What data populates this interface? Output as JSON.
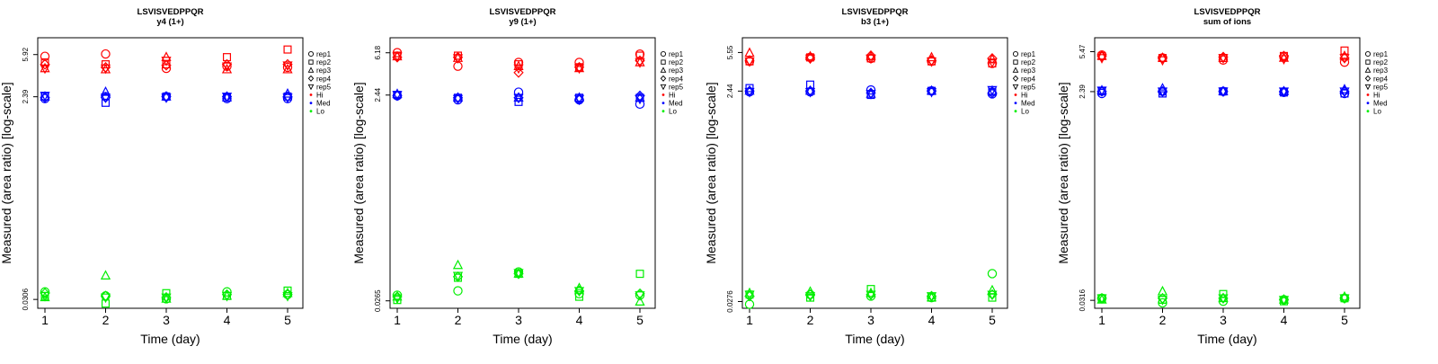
{
  "legend": {
    "shape_entries": [
      {
        "label": "rep1",
        "shape": "circle"
      },
      {
        "label": "rep2",
        "shape": "square"
      },
      {
        "label": "rep3",
        "shape": "triangle-up"
      },
      {
        "label": "rep4",
        "shape": "diamond"
      },
      {
        "label": "rep5",
        "shape": "triangle-down"
      }
    ],
    "color_entries": [
      {
        "label": "Hi",
        "color": "#ff0000"
      },
      {
        "label": "Med",
        "color": "#0000ff"
      },
      {
        "label": "Lo",
        "color": "#00ee00"
      }
    ]
  },
  "chart_data": [
    {
      "type": "scatter",
      "title": "LSVISVEDPPQR",
      "subtitle": "y4 (1+)",
      "xlabel": "Time (day)",
      "ylabel": "Measured (area ratio) [log-scale]",
      "x_ticks": [
        "1",
        "2",
        "3",
        "4",
        "5"
      ],
      "y_ticks": [
        "0.0306",
        "2.39",
        "5.92"
      ],
      "y_scale": "log",
      "ylim": [
        0.0253,
        8.5
      ],
      "grid": false,
      "legend_position": "right",
      "series": [
        {
          "name": "Hi",
          "color": "#ff0000",
          "values": [
            [
              5.7,
              6.0,
              4.4,
              4.6,
              4.5
            ],
            [
              5.0,
              4.8,
              4.8,
              5.6,
              6.6
            ],
            [
              4.4,
              4.3,
              5.6,
              4.3,
              4.3
            ],
            [
              4.8,
              4.5,
              4.7,
              4.8,
              4.8
            ],
            [
              4.4,
              4.4,
              5.2,
              4.6,
              4.7
            ]
          ]
        },
        {
          "name": "Med",
          "color": "#0000ff",
          "values": [
            [
              2.3,
              2.4,
              2.4,
              2.3,
              2.3
            ],
            [
              2.4,
              2.1,
              2.4,
              2.35,
              2.4
            ],
            [
              2.4,
              2.65,
              2.4,
              2.35,
              2.55
            ],
            [
              2.35,
              2.35,
              2.4,
              2.4,
              2.4
            ],
            [
              2.45,
              2.35,
              2.35,
              2.4,
              2.35
            ]
          ]
        },
        {
          "name": "Lo",
          "color": "#00ee00",
          "values": [
            [
              0.036,
              0.033,
              0.031,
              0.036,
              0.034
            ],
            [
              0.033,
              0.028,
              0.035,
              0.033,
              0.037
            ],
            [
              0.032,
              0.051,
              0.031,
              0.033,
              0.035
            ],
            [
              0.035,
              0.033,
              0.032,
              0.034,
              0.034
            ],
            [
              0.033,
              0.032,
              0.032,
              0.033,
              0.033
            ]
          ]
        }
      ]
    },
    {
      "type": "scatter",
      "title": "LSVISVEDPPQR",
      "subtitle": "y9 (1+)",
      "xlabel": "Time (day)",
      "ylabel": "Measured (area ratio) [log-scale]",
      "x_ticks": [
        "1",
        "2",
        "3",
        "4",
        "5"
      ],
      "y_ticks": [
        "0.0265",
        "2.44",
        "6.18"
      ],
      "y_scale": "log",
      "ylim": [
        0.0225,
        8.6
      ],
      "grid": false,
      "legend_position": "right",
      "series": [
        {
          "name": "Hi",
          "color": "#ff0000",
          "values": [
            [
              6.2,
              4.6,
              5.0,
              5.0,
              6.0
            ],
            [
              5.8,
              5.8,
              4.8,
              4.5,
              5.8
            ],
            [
              5.7,
              5.5,
              4.6,
              4.4,
              5.0
            ],
            [
              5.6,
              5.6,
              4.0,
              4.5,
              5.2
            ],
            [
              5.7,
              5.5,
              4.4,
              4.4,
              5.0
            ]
          ]
        },
        {
          "name": "Med",
          "color": "#0000ff",
          "values": [
            [
              2.4,
              2.2,
              2.6,
              2.2,
              2.0
            ],
            [
              2.45,
              2.3,
              2.1,
              2.3,
              2.3
            ],
            [
              2.5,
              2.3,
              2.3,
              2.3,
              2.3
            ],
            [
              2.4,
              2.3,
              2.3,
              2.2,
              2.4
            ],
            [
              2.45,
              2.25,
              2.3,
              2.25,
              2.25
            ]
          ]
        },
        {
          "name": "Lo",
          "color": "#00ee00",
          "values": [
            [
              0.03,
              0.033,
              0.05,
              0.031,
              0.03
            ],
            [
              0.027,
              0.044,
              0.048,
              0.029,
              0.048
            ],
            [
              0.029,
              0.058,
              0.048,
              0.035,
              0.026
            ],
            [
              0.029,
              0.045,
              0.048,
              0.033,
              0.031
            ],
            [
              0.028,
              0.046,
              0.049,
              0.033,
              0.03
            ]
          ]
        }
      ]
    },
    {
      "type": "scatter",
      "title": "LSVISVEDPPQR",
      "subtitle": "b3 (1+)",
      "xlabel": "Time (day)",
      "ylabel": "Measured (area ratio) [log-scale]",
      "x_ticks": [
        "1",
        "2",
        "3",
        "4",
        "5"
      ],
      "y_ticks": [
        "0.0276",
        "2.44",
        "5.55"
      ],
      "y_scale": "log",
      "ylim": [
        0.0239,
        7.6
      ],
      "grid": false,
      "legend_position": "right",
      "series": [
        {
          "name": "Hi",
          "color": "#ff0000",
          "values": [
            [
              4.6,
              5.0,
              4.9,
              4.6,
              4.4
            ],
            [
              4.6,
              5.0,
              4.9,
              4.6,
              4.4
            ],
            [
              5.5,
              5.1,
              5.1,
              5.0,
              4.8
            ],
            [
              4.7,
              4.9,
              5.2,
              4.7,
              4.9
            ],
            [
              4.6,
              4.9,
              4.9,
              4.6,
              4.5
            ]
          ]
        },
        {
          "name": "Med",
          "color": "#0000ff",
          "values": [
            [
              2.4,
              2.4,
              2.5,
              2.45,
              2.3
            ],
            [
              2.6,
              2.8,
              2.25,
              2.45,
              2.4
            ],
            [
              2.45,
              2.45,
              2.3,
              2.45,
              2.45
            ],
            [
              2.45,
              2.45,
              2.35,
              2.45,
              2.35
            ],
            [
              2.4,
              2.4,
              2.3,
              2.4,
              2.5
            ]
          ]
        },
        {
          "name": "Lo",
          "color": "#00ee00",
          "values": [
            [
              0.026,
              0.032,
              0.031,
              0.03,
              0.05
            ],
            [
              0.032,
              0.03,
              0.036,
              0.03,
              0.03
            ],
            [
              0.033,
              0.034,
              0.033,
              0.03,
              0.035
            ],
            [
              0.031,
              0.032,
              0.032,
              0.031,
              0.032
            ],
            [
              0.032,
              0.031,
              0.032,
              0.031,
              0.032
            ]
          ]
        }
      ]
    },
    {
      "type": "scatter",
      "title": "LSVISVEDPPQR",
      "subtitle": "sum of ions",
      "xlabel": "Time (day)",
      "ylabel": "Measured (area ratio) [log-scale]",
      "x_ticks": [
        "1",
        "2",
        "3",
        "4",
        "5"
      ],
      "y_ticks": [
        "0.0316",
        "2.39",
        "5.47"
      ],
      "y_scale": "log",
      "ylim": [
        0.0268,
        7.3
      ],
      "grid": false,
      "legend_position": "right",
      "series": [
        {
          "name": "Hi",
          "color": "#ff0000",
          "values": [
            [
              5.1,
              4.8,
              4.6,
              4.9,
              4.4
            ],
            [
              5.0,
              4.8,
              4.8,
              5.0,
              5.6
            ],
            [
              5.0,
              4.8,
              4.8,
              4.8,
              5.0
            ],
            [
              5.0,
              4.8,
              4.9,
              5.0,
              4.8
            ],
            [
              4.8,
              4.6,
              4.8,
              4.7,
              4.8
            ]
          ]
        },
        {
          "name": "Med",
          "color": "#0000ff",
          "values": [
            [
              2.3,
              2.4,
              2.4,
              2.35,
              2.3
            ],
            [
              2.4,
              2.3,
              2.4,
              2.35,
              2.3
            ],
            [
              2.45,
              2.55,
              2.4,
              2.4,
              2.5
            ],
            [
              2.4,
              2.4,
              2.4,
              2.4,
              2.4
            ],
            [
              2.45,
              2.4,
              2.4,
              2.4,
              2.4
            ]
          ]
        },
        {
          "name": "Lo",
          "color": "#00ee00",
          "values": [
            [
              0.033,
              0.03,
              0.031,
              0.032,
              0.033
            ],
            [
              0.033,
              0.032,
              0.036,
              0.031,
              0.033
            ],
            [
              0.032,
              0.038,
              0.033,
              0.032,
              0.034
            ],
            [
              0.033,
              0.033,
              0.033,
              0.032,
              0.033
            ],
            [
              0.033,
              0.032,
              0.033,
              0.032,
              0.033
            ]
          ]
        }
      ]
    }
  ]
}
